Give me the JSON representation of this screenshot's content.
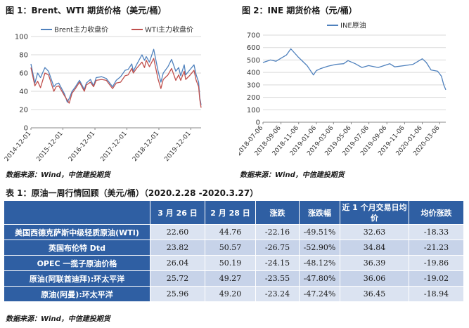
{
  "figure1": {
    "title": "图 1：Brent、WTI 期货价格（美元/桶）",
    "source": "数据来源：Wind，中信建投期货"
  },
  "figure2": {
    "title": "图 2：INE 期货价格（元/桶）",
    "source": "数据来源：Wind，中信建投期货"
  },
  "table": {
    "title": "表 1：原油一周行情回顾（美元/桶）（2020.2.28 -2020.3.27）",
    "headers": [
      "",
      "3 月 26 日",
      "2 月 28 日",
      "涨跌",
      "涨跌幅",
      "近 1 个月交易日均价",
      "均价涨跌"
    ],
    "rows": [
      {
        "name": "美国西德克萨斯中级轻质原油(WTI)",
        "values": [
          "22.60",
          "44.76",
          "-22.16",
          "-49.51%",
          "32.63",
          "-18.33"
        ]
      },
      {
        "name": "英国布伦特 Dtd",
        "values": [
          "23.82",
          "50.57",
          "-26.75",
          "-52.90%",
          "34.84",
          "-21.23"
        ]
      },
      {
        "name": "OPEC 一揽子原油价格",
        "values": [
          "26.04",
          "50.19",
          "-24.15",
          "-48.12%",
          "36.39",
          "-19.86"
        ]
      },
      {
        "name": "原油(阿联酋迪拜):环太平洋",
        "values": [
          "25.72",
          "49.27",
          "-23.55",
          "-47.80%",
          "36.06",
          "-19.02"
        ]
      },
      {
        "name": "原油(阿曼):环太平洋",
        "values": [
          "25.96",
          "49.20",
          "-23.24",
          "-47.24%",
          "36.45",
          "-18.94"
        ]
      }
    ],
    "source": "数据来源：Wind，中信建投期货"
  },
  "chart_data": [
    {
      "type": "line",
      "title": "图 1：Brent、WTI 期货价格（美元/桶）",
      "xlabel": "",
      "ylabel": "",
      "ylim": [
        0,
        100
      ],
      "yticks": [
        0,
        20,
        40,
        60,
        80,
        100
      ],
      "xlim": [
        "2014-12-01",
        "2020-03-27"
      ],
      "xticks": [
        "2014-12-01",
        "2015-12-01",
        "2016-12-01",
        "2017-12-01",
        "2018-12-01",
        "2019-12-01"
      ],
      "grid": true,
      "legend": "top",
      "colors": {
        "Brent主力收盘价": "#4f81bd",
        "WTI主力收盘价": "#c0504d"
      },
      "series": [
        {
          "name": "Brent主力收盘价",
          "x": [
            "2014-12-01",
            "2015-01-15",
            "2015-02-15",
            "2015-03-20",
            "2015-05-10",
            "2015-06-20",
            "2015-08-20",
            "2015-09-15",
            "2015-10-15",
            "2015-12-20",
            "2016-01-20",
            "2016-02-15",
            "2016-03-15",
            "2016-04-15",
            "2016-06-08",
            "2016-08-01",
            "2016-08-25",
            "2016-10-10",
            "2016-11-15",
            "2016-12-15",
            "2017-02-15",
            "2017-04-10",
            "2017-06-20",
            "2017-08-01",
            "2017-09-20",
            "2017-11-10",
            "2017-12-15",
            "2018-01-25",
            "2018-02-12",
            "2018-03-20",
            "2018-05-22",
            "2018-06-20",
            "2018-07-10",
            "2018-08-15",
            "2018-10-03",
            "2018-11-20",
            "2018-12-24",
            "2019-01-20",
            "2019-03-15",
            "2019-04-25",
            "2019-06-12",
            "2019-07-15",
            "2019-08-07",
            "2019-09-16",
            "2019-10-03",
            "2019-11-15",
            "2020-01-06",
            "2020-01-31",
            "2020-02-28",
            "2020-03-12",
            "2020-03-27"
          ],
          "values": [
            70,
            49,
            60,
            55,
            66,
            62,
            45,
            48,
            49,
            37,
            28,
            33,
            40,
            44,
            52,
            42,
            49,
            53,
            46,
            55,
            56,
            54,
            45,
            52,
            56,
            63,
            64,
            70,
            62,
            69,
            80,
            74,
            78,
            72,
            86,
            63,
            50,
            60,
            67,
            75,
            62,
            66,
            57,
            69,
            58,
            63,
            69,
            58,
            50,
            33,
            25
          ]
        },
        {
          "name": "WTI主力收盘价",
          "x": [
            "2014-12-01",
            "2015-01-15",
            "2015-02-15",
            "2015-03-20",
            "2015-05-10",
            "2015-06-20",
            "2015-08-20",
            "2015-09-15",
            "2015-10-15",
            "2015-12-20",
            "2016-02-11",
            "2016-03-15",
            "2016-04-15",
            "2016-06-08",
            "2016-08-01",
            "2016-08-25",
            "2016-10-10",
            "2016-11-15",
            "2016-12-15",
            "2017-02-15",
            "2017-04-10",
            "2017-06-20",
            "2017-08-01",
            "2017-09-20",
            "2017-11-10",
            "2017-12-15",
            "2018-01-25",
            "2018-02-12",
            "2018-03-20",
            "2018-05-22",
            "2018-06-20",
            "2018-07-10",
            "2018-08-15",
            "2018-10-03",
            "2018-11-20",
            "2018-12-24",
            "2019-01-20",
            "2019-03-15",
            "2019-04-25",
            "2019-06-12",
            "2019-07-15",
            "2019-08-07",
            "2019-09-16",
            "2019-10-03",
            "2019-11-15",
            "2020-01-06",
            "2020-01-31",
            "2020-02-28",
            "2020-03-12",
            "2020-03-27"
          ],
          "values": [
            66,
            46,
            51,
            44,
            60,
            58,
            40,
            45,
            46,
            35,
            27,
            38,
            42,
            50,
            40,
            47,
            50,
            45,
            52,
            53,
            52,
            43,
            49,
            50,
            57,
            58,
            65,
            60,
            65,
            72,
            66,
            74,
            67,
            76,
            54,
            43,
            53,
            58,
            65,
            52,
            58,
            52,
            62,
            53,
            57,
            63,
            52,
            45,
            31,
            22
          ]
        }
      ]
    },
    {
      "type": "line",
      "title": "图 2：INE 期货价格（元/桶）",
      "xlabel": "",
      "ylabel": "",
      "ylim": [
        0,
        700
      ],
      "yticks": [
        0,
        100,
        200,
        300,
        400,
        500,
        600,
        700
      ],
      "xlim": [
        "2018-07-06",
        "2020-03-27"
      ],
      "xticks": [
        "2018-07-06",
        "2018-09-06",
        "2018-11-06",
        "2019-01-06",
        "2019-03-06",
        "2019-05-06",
        "2019-07-06",
        "2019-09-06",
        "2019-11-06",
        "2020-01-06",
        "2020-03-06"
      ],
      "grid": true,
      "legend": "top",
      "colors": {
        "INE原油": "#4f81bd"
      },
      "series": [
        {
          "name": "INE原油",
          "x": [
            "2018-07-06",
            "2018-08-01",
            "2018-08-20",
            "2018-09-10",
            "2018-09-25",
            "2018-10-10",
            "2018-11-06",
            "2018-12-05",
            "2018-12-27",
            "2019-01-06",
            "2019-01-20",
            "2019-02-15",
            "2019-03-15",
            "2019-04-10",
            "2019-04-25",
            "2019-05-20",
            "2019-06-12",
            "2019-07-05",
            "2019-08-07",
            "2019-09-16",
            "2019-10-03",
            "2019-11-06",
            "2019-12-05",
            "2020-01-06",
            "2020-01-20",
            "2020-02-05",
            "2020-02-28",
            "2020-03-12",
            "2020-03-20",
            "2020-03-27"
          ],
          "values": [
            480,
            500,
            490,
            520,
            540,
            590,
            520,
            455,
            380,
            415,
            430,
            450,
            465,
            470,
            495,
            470,
            440,
            455,
            440,
            470,
            445,
            455,
            465,
            510,
            480,
            420,
            410,
            370,
            300,
            260
          ]
        }
      ]
    }
  ]
}
